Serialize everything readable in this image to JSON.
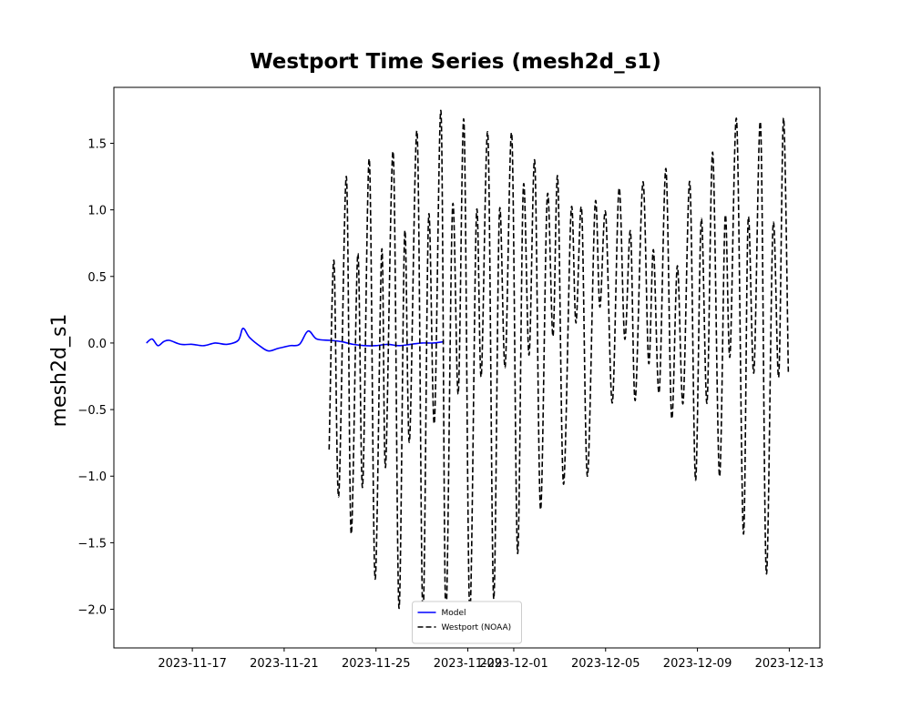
{
  "chart_data": {
    "type": "line",
    "title": "Westport Time Series (mesh2d_s1)",
    "y_label": "mesh2d_s1",
    "xlim": [
      "2023-11-13T14:00",
      "2023-12-14T08:00"
    ],
    "xticks": [
      "2023-11-17",
      "2023-11-21",
      "2023-11-25",
      "2023-11-29",
      "2023-12-01",
      "2023-12-05",
      "2023-12-09",
      "2023-12-13"
    ],
    "ylim": [
      -2.29,
      1.92
    ],
    "yticks": [
      {
        "value": -2,
        "label": "−2.0"
      },
      {
        "value": -1.5,
        "label": "−1.5"
      },
      {
        "value": -1,
        "label": "−1.0"
      },
      {
        "value": -0.5,
        "label": "−0.5"
      },
      {
        "value": 0,
        "label": "0.0"
      },
      0.5,
      {
        "value": 1,
        "label": "1.0"
      },
      1.5
    ],
    "grid": false,
    "legend": "lower center",
    "series": [
      {
        "name": "Model",
        "color": "#0000ff",
        "linestyle": "solid",
        "x": [
          "2023-11-15T00:00",
          "2023-11-15T06:00",
          "2023-11-15T12:00",
          "2023-11-15T18:00",
          "2023-11-16T00:00",
          "2023-11-16T12:00",
          "2023-11-17T00:00",
          "2023-11-17T12:00",
          "2023-11-18T00:00",
          "2023-11-18T12:00",
          "2023-11-19T00:00",
          "2023-11-19T05:00",
          "2023-11-19T12:00",
          "2023-11-20T00:00",
          "2023-11-20T08:00",
          "2023-11-20T18:00",
          "2023-11-21T06:00",
          "2023-11-21T16:00",
          "2023-11-22T01:00",
          "2023-11-22T10:00",
          "2023-11-23T00:00",
          "2023-11-23T12:00",
          "2023-11-24T00:00",
          "2023-11-24T12:00",
          "2023-11-25T00:00",
          "2023-11-25T12:00",
          "2023-11-26T00:00",
          "2023-11-26T12:00",
          "2023-11-27T00:00",
          "2023-11-27T12:00",
          "2023-11-27T23:00"
        ],
        "values": [
          0.0,
          0.03,
          -0.02,
          0.01,
          0.02,
          -0.01,
          -0.01,
          -0.02,
          0.0,
          -0.01,
          0.02,
          0.11,
          0.04,
          -0.03,
          -0.06,
          -0.04,
          -0.02,
          -0.01,
          0.09,
          0.03,
          0.02,
          0.01,
          -0.01,
          -0.02,
          -0.02,
          -0.01,
          -0.02,
          -0.01,
          0.0,
          0.0,
          0.01
        ]
      },
      {
        "name": "Westport (NOAA)",
        "color": "#000000",
        "linestyle": "dashed",
        "x": [
          "2023-11-22T23:00",
          "2023-11-23T04:00",
          "2023-11-23T09:00",
          "2023-11-23T17:00",
          "2023-11-23T22:00",
          "2023-11-24T05:00",
          "2023-11-24T10:00",
          "2023-11-24T17:00",
          "2023-11-24T23:00",
          "2023-11-25T06:00",
          "2023-11-25T10:00",
          "2023-11-25T18:00",
          "2023-11-26T00:00",
          "2023-11-26T06:00",
          "2023-11-26T11:00",
          "2023-11-26T19:00",
          "2023-11-27T01:00",
          "2023-11-27T07:00",
          "2023-11-27T13:00",
          "2023-11-27T20:00",
          "2023-11-28T01:00",
          "2023-11-28T08:00",
          "2023-11-28T14:00",
          "2023-11-28T20:00",
          "2023-11-29T02:00",
          "2023-11-29T09:00",
          "2023-11-29T14:00",
          "2023-11-29T21:00",
          "2023-11-30T03:00",
          "2023-11-30T09:00",
          "2023-11-30T15:00",
          "2023-11-30T22:00",
          "2023-12-01T04:00",
          "2023-12-01T10:00",
          "2023-12-01T16:00",
          "2023-12-01T22:00",
          "2023-12-02T04:00",
          "2023-12-02T11:00",
          "2023-12-02T17:00",
          "2023-12-02T22:00",
          "2023-12-03T04:00",
          "2023-12-03T12:00",
          "2023-12-03T17:00",
          "2023-12-03T23:00",
          "2023-12-04T05:00",
          "2023-12-04T13:00",
          "2023-12-04T18:00",
          "2023-12-05T00:00",
          "2023-12-05T07:00",
          "2023-12-05T14:00",
          "2023-12-05T20:00",
          "2023-12-06T02:00",
          "2023-12-06T07:00",
          "2023-12-06T15:00",
          "2023-12-06T21:00",
          "2023-12-07T02:00",
          "2023-12-07T08:00",
          "2023-12-07T15:00",
          "2023-12-07T21:00",
          "2023-12-08T03:00",
          "2023-12-08T09:00",
          "2023-12-08T16:00",
          "2023-12-08T22:00",
          "2023-12-09T04:00",
          "2023-12-09T10:00",
          "2023-12-09T16:00",
          "2023-12-09T23:00",
          "2023-12-10T05:00",
          "2023-12-10T10:00",
          "2023-12-10T17:00",
          "2023-12-11T00:00",
          "2023-12-11T05:00",
          "2023-12-11T11:00",
          "2023-12-11T18:00",
          "2023-12-12T00:00",
          "2023-12-12T07:00",
          "2023-12-12T13:00",
          "2023-12-12T18:00",
          "2023-12-12T23:00"
        ],
        "values": [
          -0.8,
          0.62,
          -1.15,
          1.25,
          -1.43,
          0.67,
          -1.08,
          1.38,
          -1.77,
          0.7,
          -0.93,
          1.43,
          -1.99,
          0.83,
          -0.74,
          1.58,
          -2.05,
          0.95,
          -0.6,
          1.73,
          -2.05,
          1.02,
          -0.38,
          1.66,
          -2.03,
          0.97,
          -0.25,
          1.56,
          -1.92,
          0.98,
          -0.18,
          1.56,
          -1.58,
          1.17,
          -0.09,
          1.36,
          -1.25,
          1.1,
          0.05,
          1.24,
          -1.06,
          1.0,
          0.15,
          1.0,
          -1.0,
          1.04,
          0.27,
          0.98,
          -0.45,
          1.16,
          0.03,
          0.84,
          -0.43,
          1.21,
          -0.15,
          0.7,
          -0.37,
          1.31,
          -0.56,
          0.58,
          -0.45,
          1.21,
          -1.03,
          0.93,
          -0.45,
          1.43,
          -1.0,
          0.95,
          -0.1,
          1.67,
          -1.43,
          0.93,
          -0.22,
          1.64,
          -1.73,
          0.88,
          -0.25,
          1.69,
          -0.22
        ]
      }
    ]
  }
}
